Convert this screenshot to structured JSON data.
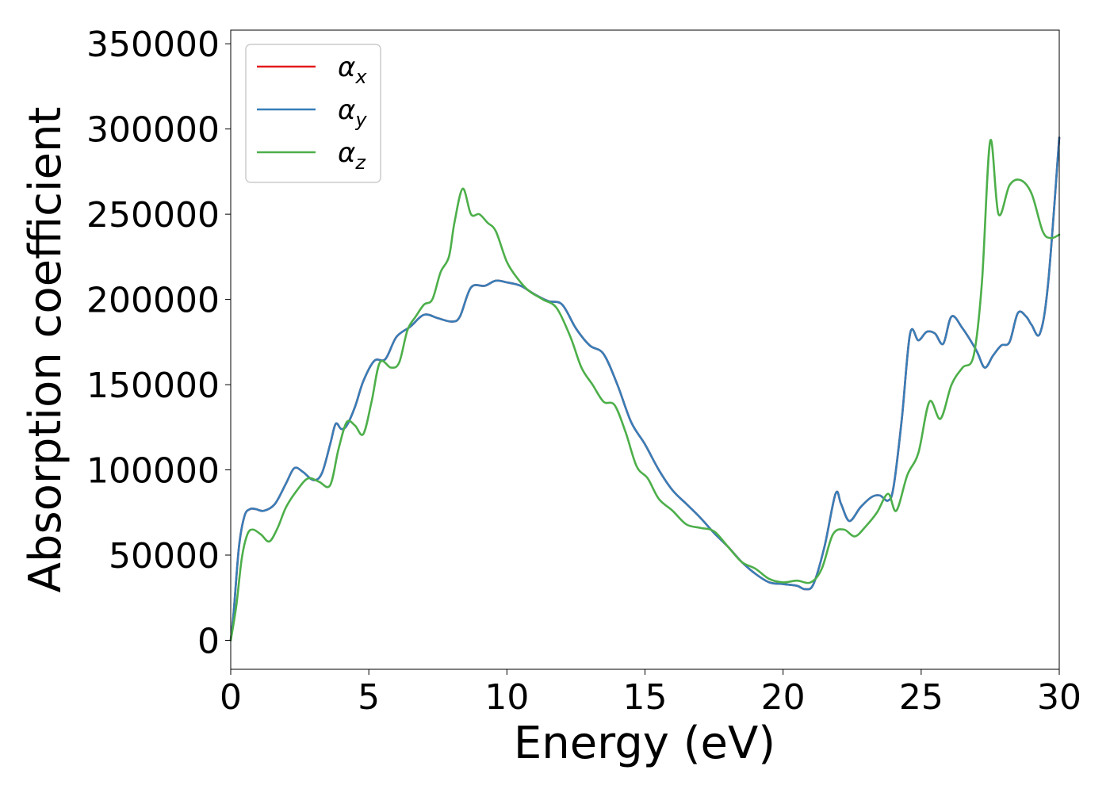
{
  "chart_data": {
    "type": "line",
    "title": "",
    "xlabel": "Energy (eV)",
    "ylabel": "Absorption coefficient",
    "xlim": [
      0,
      30
    ],
    "ylim": [
      -17000,
      358000
    ],
    "xticks": [
      0,
      5,
      10,
      15,
      20,
      25,
      30
    ],
    "xtick_labels": [
      "0",
      "5",
      "10",
      "15",
      "20",
      "25",
      "30"
    ],
    "yticks": [
      0,
      50000,
      100000,
      150000,
      200000,
      250000,
      300000,
      350000
    ],
    "ytick_labels": [
      "0",
      "50000",
      "100000",
      "150000",
      "200000",
      "250000",
      "300000",
      "350000"
    ],
    "grid": false,
    "legend_position": "top-left",
    "series": [
      {
        "name": "α_x",
        "label_base": "α",
        "label_sub": "x",
        "color": "#e41a1c",
        "x": [
          0,
          0.1,
          0.3,
          0.5,
          0.7,
          0.9,
          1.2,
          1.6,
          2.0,
          2.3,
          2.6,
          3.0,
          3.3,
          3.6,
          3.8,
          4.0,
          4.2,
          4.5,
          4.8,
          5.2,
          5.6,
          6.0,
          6.5,
          7.0,
          7.5,
          8.0,
          8.3,
          8.7,
          9.2,
          9.6,
          10.0,
          10.5,
          11.0,
          11.5,
          12.0,
          12.5,
          13.0,
          13.5,
          14.0,
          14.5,
          15.0,
          15.5,
          16.0,
          16.5,
          17.0,
          17.5,
          18.0,
          18.5,
          19.0,
          19.5,
          20.0,
          20.5,
          20.8,
          21.1,
          21.5,
          21.9,
          22.1,
          22.4,
          22.8,
          23.2,
          23.5,
          23.8,
          24.0,
          24.3,
          24.6,
          24.9,
          25.2,
          25.5,
          25.8,
          26.1,
          26.5,
          27.0,
          27.3,
          27.6,
          27.9,
          28.2,
          28.5,
          28.8,
          29.0,
          29.3,
          29.6,
          30.0
        ],
        "values": [
          0,
          15000,
          55000,
          73000,
          77000,
          77000,
          76000,
          80000,
          92000,
          101000,
          99000,
          94000,
          98000,
          115000,
          127000,
          124000,
          126000,
          137000,
          152000,
          164000,
          165000,
          178000,
          184000,
          191000,
          189000,
          187000,
          190000,
          207000,
          208000,
          211000,
          210000,
          208000,
          203000,
          199000,
          197000,
          183000,
          173000,
          168000,
          150000,
          128000,
          115000,
          100000,
          88000,
          80000,
          72000,
          63000,
          55000,
          46000,
          39000,
          34000,
          33000,
          32000,
          30000,
          33000,
          55000,
          86000,
          80000,
          70000,
          78000,
          84000,
          85000,
          82000,
          90000,
          130000,
          180000,
          176000,
          181000,
          180000,
          174000,
          190000,
          183000,
          170000,
          160000,
          167000,
          173000,
          175000,
          192000,
          190000,
          185000,
          180000,
          210000,
          295000
        ]
      },
      {
        "name": "α_y",
        "label_base": "α",
        "label_sub": "y",
        "color": "#377eb8",
        "x": [
          0,
          0.1,
          0.3,
          0.5,
          0.7,
          0.9,
          1.2,
          1.6,
          2.0,
          2.3,
          2.6,
          3.0,
          3.3,
          3.6,
          3.8,
          4.0,
          4.2,
          4.5,
          4.8,
          5.2,
          5.6,
          6.0,
          6.5,
          7.0,
          7.5,
          8.0,
          8.3,
          8.7,
          9.2,
          9.6,
          10.0,
          10.5,
          11.0,
          11.5,
          12.0,
          12.5,
          13.0,
          13.5,
          14.0,
          14.5,
          15.0,
          15.5,
          16.0,
          16.5,
          17.0,
          17.5,
          18.0,
          18.5,
          19.0,
          19.5,
          20.0,
          20.5,
          20.8,
          21.1,
          21.5,
          21.9,
          22.1,
          22.4,
          22.8,
          23.2,
          23.5,
          23.8,
          24.0,
          24.3,
          24.6,
          24.9,
          25.2,
          25.5,
          25.8,
          26.1,
          26.5,
          27.0,
          27.3,
          27.6,
          27.9,
          28.2,
          28.5,
          28.8,
          29.0,
          29.3,
          29.6,
          30.0
        ],
        "values": [
          0,
          15000,
          55000,
          73000,
          77000,
          77000,
          76000,
          80000,
          92000,
          101000,
          99000,
          94000,
          98000,
          115000,
          127000,
          124000,
          126000,
          137000,
          152000,
          164000,
          165000,
          178000,
          184000,
          191000,
          189000,
          187000,
          190000,
          207000,
          208000,
          211000,
          210000,
          208000,
          203000,
          199000,
          197000,
          183000,
          173000,
          168000,
          150000,
          128000,
          115000,
          100000,
          88000,
          80000,
          72000,
          63000,
          55000,
          46000,
          39000,
          34000,
          33000,
          32000,
          30000,
          33000,
          55000,
          86000,
          80000,
          70000,
          78000,
          84000,
          85000,
          82000,
          90000,
          130000,
          180000,
          176000,
          181000,
          180000,
          174000,
          190000,
          183000,
          170000,
          160000,
          167000,
          173000,
          175000,
          192000,
          190000,
          185000,
          180000,
          210000,
          295000
        ]
      },
      {
        "name": "α_z",
        "label_base": "α",
        "label_sub": "z",
        "color": "#4daf4a",
        "x": [
          0,
          0.2,
          0.4,
          0.6,
          0.8,
          1.1,
          1.4,
          1.7,
          2.0,
          2.4,
          2.8,
          3.2,
          3.6,
          3.9,
          4.2,
          4.5,
          4.8,
          5.1,
          5.4,
          5.8,
          6.1,
          6.4,
          6.7,
          7.0,
          7.3,
          7.6,
          7.9,
          8.1,
          8.4,
          8.7,
          9.0,
          9.3,
          9.6,
          10.0,
          10.4,
          10.8,
          11.3,
          11.8,
          12.3,
          12.7,
          13.1,
          13.5,
          13.9,
          14.3,
          14.7,
          15.1,
          15.5,
          16.0,
          16.5,
          17.0,
          17.5,
          18.0,
          18.5,
          19.0,
          19.5,
          20.0,
          20.5,
          21.0,
          21.4,
          21.8,
          22.2,
          22.6,
          23.0,
          23.4,
          23.8,
          24.1,
          24.5,
          24.9,
          25.3,
          25.7,
          26.1,
          26.5,
          26.9,
          27.2,
          27.5,
          27.8,
          28.2,
          28.6,
          29.0,
          29.4,
          29.7,
          30.0
        ],
        "values": [
          0,
          20000,
          48000,
          62000,
          65000,
          62000,
          58000,
          66000,
          78000,
          88000,
          95000,
          93000,
          91000,
          112000,
          128000,
          126000,
          121000,
          140000,
          163000,
          160000,
          163000,
          182000,
          190000,
          197000,
          200000,
          216000,
          225000,
          245000,
          265000,
          250000,
          250000,
          245000,
          240000,
          222000,
          212000,
          205000,
          200000,
          195000,
          178000,
          160000,
          150000,
          140000,
          138000,
          122000,
          102000,
          95000,
          83000,
          76000,
          68000,
          66000,
          64000,
          55000,
          46000,
          42000,
          36000,
          34000,
          35000,
          34000,
          42000,
          62000,
          65000,
          61000,
          67000,
          75000,
          86000,
          76000,
          97000,
          110000,
          140000,
          130000,
          150000,
          160000,
          167000,
          210000,
          293000,
          250000,
          267000,
          270000,
          262000,
          240000,
          236000,
          238000
        ]
      }
    ]
  }
}
